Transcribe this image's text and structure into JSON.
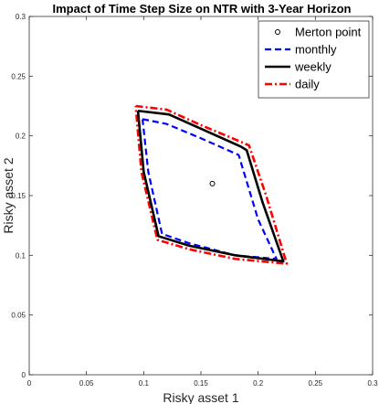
{
  "chart_data": {
    "type": "line",
    "title": "Impact of Time Step Size on NTR with 3-Year Horizon",
    "xlabel": "Risky asset 1",
    "ylabel": "Risky asset 2",
    "xlim": [
      0,
      0.3
    ],
    "ylim": [
      0,
      0.3
    ],
    "xticks": [
      0,
      0.05,
      0.1,
      0.15,
      0.2,
      0.25,
      0.3
    ],
    "yticks": [
      0,
      0.05,
      0.1,
      0.15,
      0.2,
      0.25,
      0.3
    ],
    "xtick_labels": [
      "0",
      "0.05",
      "0.1",
      "0.15",
      "0.2",
      "0.25",
      "0.3"
    ],
    "ytick_labels": [
      "0",
      "0.05",
      "0.1",
      "0.15",
      "0.2",
      "0.25",
      "0.3"
    ],
    "grid": false,
    "legend_position": "top-right",
    "series": [
      {
        "name": "Merton point",
        "style": "marker",
        "color": "#000000",
        "points": [
          [
            0.16,
            0.16
          ]
        ]
      },
      {
        "name": "monthly",
        "style": "dashed",
        "color": "#0000ff",
        "points": [
          [
            0.099,
            0.214
          ],
          [
            0.12,
            0.21
          ],
          [
            0.15,
            0.198
          ],
          [
            0.183,
            0.184
          ],
          [
            0.2,
            0.13
          ],
          [
            0.216,
            0.097
          ],
          [
            0.18,
            0.1
          ],
          [
            0.14,
            0.11
          ],
          [
            0.116,
            0.118
          ],
          [
            0.104,
            0.17
          ],
          [
            0.099,
            0.214
          ]
        ]
      },
      {
        "name": "weekly",
        "style": "solid",
        "color": "#000000",
        "points": [
          [
            0.095,
            0.221
          ],
          [
            0.122,
            0.218
          ],
          [
            0.15,
            0.206
          ],
          [
            0.185,
            0.191
          ],
          [
            0.19,
            0.188
          ],
          [
            0.204,
            0.144
          ],
          [
            0.222,
            0.095
          ],
          [
            0.18,
            0.1
          ],
          [
            0.14,
            0.108
          ],
          [
            0.113,
            0.116
          ],
          [
            0.1,
            0.17
          ],
          [
            0.095,
            0.221
          ]
        ]
      },
      {
        "name": "daily",
        "style": "dashdot",
        "color": "#ff0000",
        "points": [
          [
            0.093,
            0.225
          ],
          [
            0.12,
            0.222
          ],
          [
            0.15,
            0.209
          ],
          [
            0.185,
            0.195
          ],
          [
            0.192,
            0.192
          ],
          [
            0.207,
            0.15
          ],
          [
            0.225,
            0.093
          ],
          [
            0.18,
            0.097
          ],
          [
            0.14,
            0.105
          ],
          [
            0.112,
            0.113
          ],
          [
            0.098,
            0.17
          ],
          [
            0.093,
            0.225
          ]
        ]
      }
    ]
  }
}
